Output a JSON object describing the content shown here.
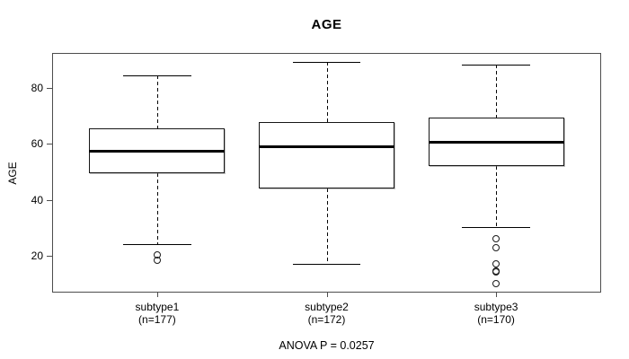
{
  "title": "AGE",
  "colors": {
    "line": "#000000",
    "frame": "#4d4d4d",
    "background": "#ffffff"
  },
  "chart_data": {
    "type": "boxplot",
    "title": "AGE",
    "ylabel": "AGE",
    "xlabel": "",
    "annotation": "ANOVA P = 0.0257",
    "ylim": [
      6.9,
      92.4
    ],
    "yticks": [
      20,
      40,
      60,
      80
    ],
    "grid": false,
    "box_width_units": 0.8,
    "cap_width_units": 0.4,
    "groups": [
      {
        "label": "subtype1",
        "sublabel": "(n=177)",
        "whisker_low": 24.3,
        "q1": 49.5,
        "median": 57.3,
        "q3": 65.6,
        "whisker_high": 84.5,
        "outliers": [
          20.2,
          18.3
        ]
      },
      {
        "label": "subtype2",
        "sublabel": "(n=172)",
        "whisker_low": 17,
        "q1": 44,
        "median": 59,
        "q3": 67.6,
        "whisker_high": 89.3,
        "outliers": []
      },
      {
        "label": "subtype3",
        "sublabel": "(n=170)",
        "whisker_low": 30.4,
        "q1": 52.2,
        "median": 60.4,
        "q3": 69.3,
        "whisker_high": 88.2,
        "outliers": [
          26,
          22.9,
          17,
          14.4,
          14,
          10
        ]
      }
    ]
  }
}
